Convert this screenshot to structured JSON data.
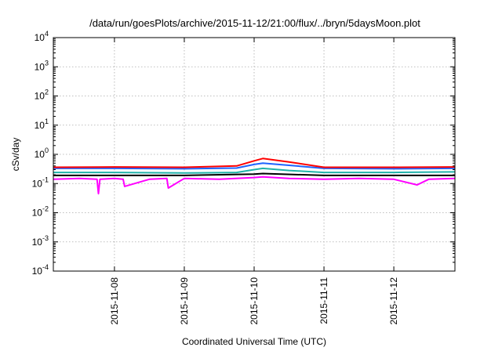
{
  "chart_data": {
    "type": "line",
    "title": "/data/run/goesPlots/archive/2015-11-12/21:00/flux/../bryn/5daysMoon.plot",
    "xlabel": "Coordinated Universal Time (UTC)",
    "ylabel": "cSv/day",
    "y_scale": "log",
    "ylim": [
      0.0001,
      10000
    ],
    "xlim": [
      "2015-11-07 03:00",
      "2015-11-12 21:00"
    ],
    "grid": true,
    "legend": "none",
    "x_ticks": [
      "2015-11-08",
      "2015-11-09",
      "2015-11-10",
      "2015-11-11",
      "2015-11-12"
    ],
    "y_ticks": [
      {
        "value": 0.0001,
        "base": "10",
        "exp": "-4"
      },
      {
        "value": 0.001,
        "base": "10",
        "exp": "-3"
      },
      {
        "value": 0.01,
        "base": "10",
        "exp": "-2"
      },
      {
        "value": 0.1,
        "base": "10",
        "exp": "-1"
      },
      {
        "value": 1,
        "base": "10",
        "exp": "0"
      },
      {
        "value": 10,
        "base": "10",
        "exp": "1"
      },
      {
        "value": 100,
        "base": "10",
        "exp": "2"
      },
      {
        "value": 1000,
        "base": "10",
        "exp": "3"
      },
      {
        "value": 10000,
        "base": "10",
        "exp": "4"
      }
    ],
    "series": [
      {
        "color": "#ff00ff",
        "x": [
          "2015-11-07 03:00",
          "2015-11-07 12:00",
          "2015-11-07 18:00",
          "2015-11-07 18:30",
          "2015-11-07 19:00",
          "2015-11-08 00:00",
          "2015-11-08 03:00",
          "2015-11-08 03:30",
          "2015-11-08 12:00",
          "2015-11-08 18:00",
          "2015-11-08 18:30",
          "2015-11-09 00:00",
          "2015-11-09 12:00",
          "2015-11-10 00:00",
          "2015-11-10 03:00",
          "2015-11-10 12:00",
          "2015-11-11 00:00",
          "2015-11-11 12:00",
          "2015-11-12 00:00",
          "2015-11-12 08:00",
          "2015-11-12 12:00",
          "2015-11-12 21:00"
        ],
        "values": [
          0.14,
          0.15,
          0.14,
          0.045,
          0.14,
          0.15,
          0.14,
          0.08,
          0.14,
          0.15,
          0.07,
          0.15,
          0.14,
          0.16,
          0.17,
          0.15,
          0.14,
          0.15,
          0.14,
          0.09,
          0.14,
          0.15
        ]
      },
      {
        "color": "#000000",
        "x": [
          "2015-11-07 03:00",
          "2015-11-08 00:00",
          "2015-11-09 00:00",
          "2015-11-10 00:00",
          "2015-11-10 03:00",
          "2015-11-11 00:00",
          "2015-11-12 00:00",
          "2015-11-12 21:00"
        ],
        "values": [
          0.19,
          0.19,
          0.19,
          0.21,
          0.22,
          0.19,
          0.19,
          0.19
        ]
      },
      {
        "color": "#20b2aa",
        "x": [
          "2015-11-07 03:00",
          "2015-11-08 00:00",
          "2015-11-09 00:00",
          "2015-11-09 18:00",
          "2015-11-10 00:00",
          "2015-11-10 03:00",
          "2015-11-10 12:00",
          "2015-11-11 00:00",
          "2015-11-12 00:00",
          "2015-11-12 21:00"
        ],
        "values": [
          0.24,
          0.24,
          0.23,
          0.24,
          0.3,
          0.33,
          0.28,
          0.24,
          0.24,
          0.25
        ]
      },
      {
        "color": "#1e64ff",
        "x": [
          "2015-11-07 03:00",
          "2015-11-08 00:00",
          "2015-11-09 00:00",
          "2015-11-09 18:00",
          "2015-11-10 00:00",
          "2015-11-10 03:00",
          "2015-11-10 12:00",
          "2015-11-11 00:00",
          "2015-11-12 00:00",
          "2015-11-12 21:00"
        ],
        "values": [
          0.33,
          0.33,
          0.32,
          0.34,
          0.45,
          0.5,
          0.42,
          0.33,
          0.32,
          0.33
        ]
      },
      {
        "color": "#ff0000",
        "x": [
          "2015-11-07 03:00",
          "2015-11-08 00:00",
          "2015-11-09 00:00",
          "2015-11-09 18:00",
          "2015-11-10 00:00",
          "2015-11-10 03:00",
          "2015-11-10 12:00",
          "2015-11-11 00:00",
          "2015-11-12 00:00",
          "2015-11-12 21:00"
        ],
        "values": [
          0.36,
          0.37,
          0.36,
          0.4,
          0.6,
          0.72,
          0.55,
          0.36,
          0.36,
          0.37
        ]
      }
    ]
  }
}
